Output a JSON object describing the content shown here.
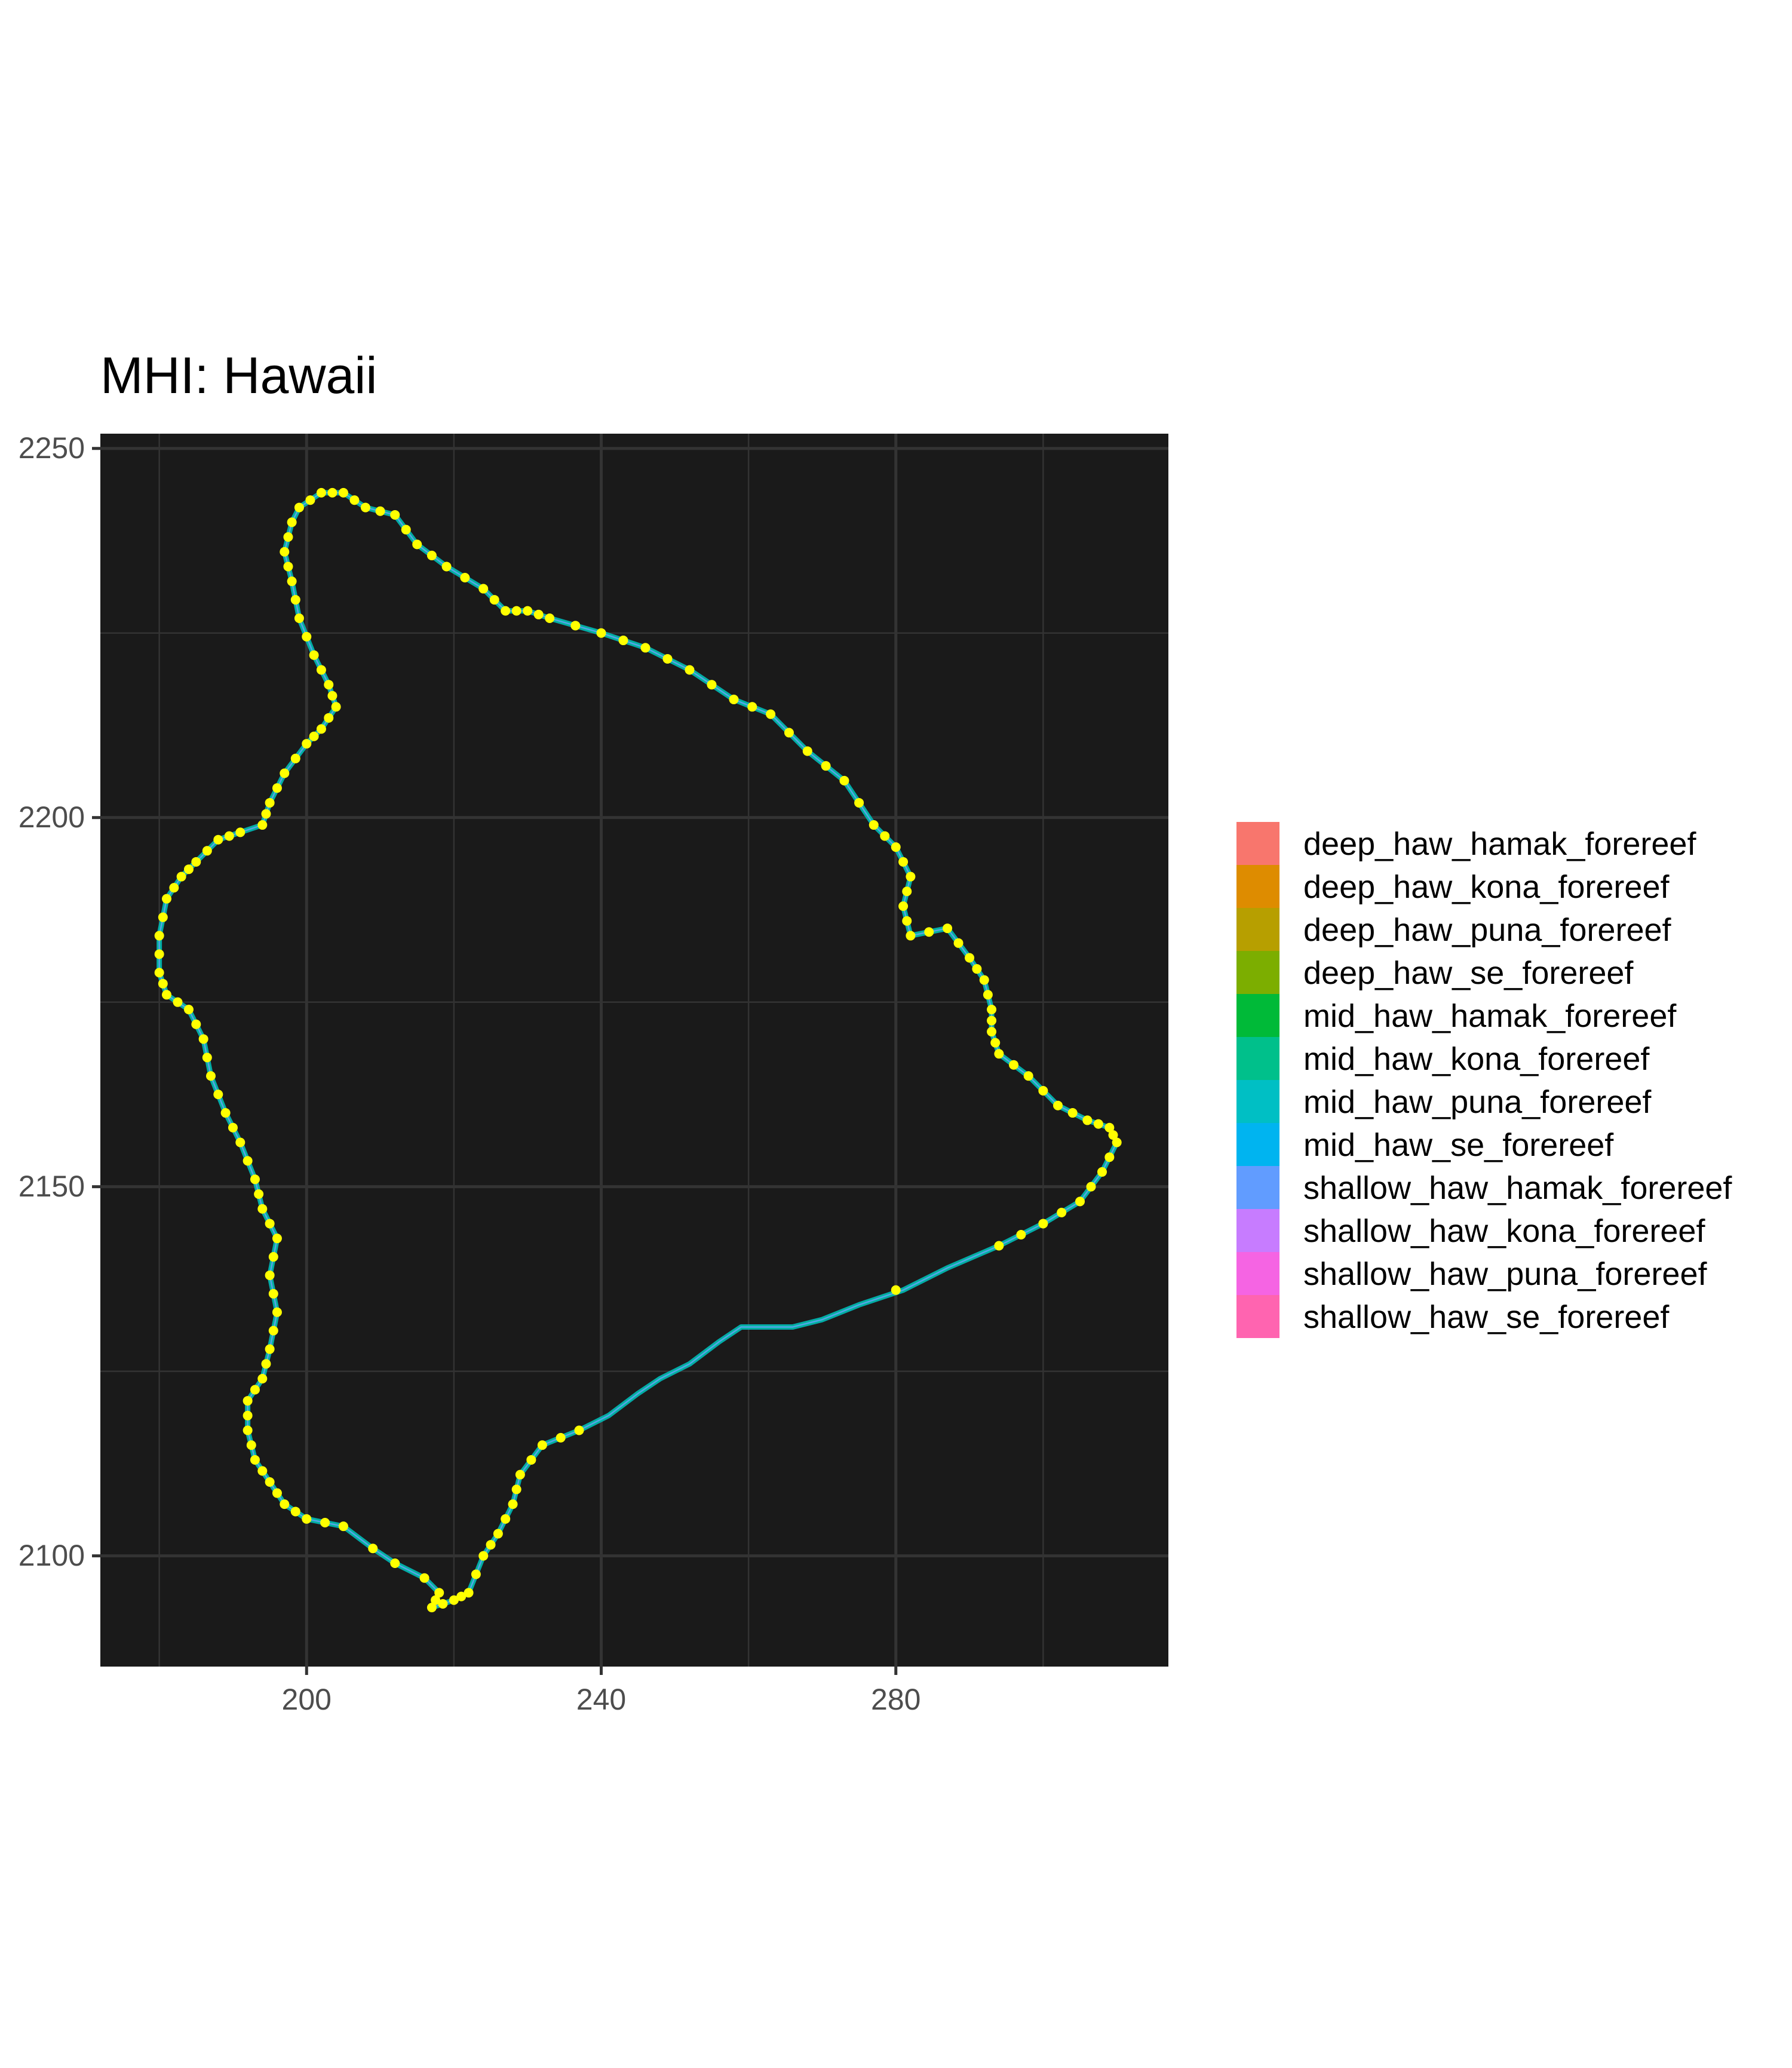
{
  "chart_data": {
    "type": "scatter",
    "title": "MHI: Hawaii",
    "xlabel": "",
    "ylabel": "",
    "xlim": [
      172,
      317
    ],
    "ylim": [
      2085,
      2252
    ],
    "x_ticks": [
      200,
      240,
      280
    ],
    "y_ticks": [
      2100,
      2150,
      2200,
      2250
    ],
    "grid": true,
    "panel_background": "#1a1a1a",
    "grid_color": "#333333",
    "point_color": "#ffff00",
    "legend_position": "right",
    "legend": [
      {
        "label": "deep_haw_hamak_forereef",
        "color": "#F8766D"
      },
      {
        "label": "deep_haw_kona_forereef",
        "color": "#DE8C00"
      },
      {
        "label": "deep_haw_puna_forereef",
        "color": "#B79F00"
      },
      {
        "label": "deep_haw_se_forereef",
        "color": "#7CAE00"
      },
      {
        "label": "mid_haw_hamak_forereef",
        "color": "#00BA38"
      },
      {
        "label": "mid_haw_kona_forereef",
        "color": "#00C08B"
      },
      {
        "label": "mid_haw_puna_forereef",
        "color": "#00BFC4"
      },
      {
        "label": "mid_haw_se_forereef",
        "color": "#00B4F0"
      },
      {
        "label": "shallow_haw_hamak_forereef",
        "color": "#619CFF"
      },
      {
        "label": "shallow_haw_kona_forereef",
        "color": "#C77CFF"
      },
      {
        "label": "shallow_haw_puna_forereef",
        "color": "#F564E3"
      },
      {
        "label": "shallow_haw_se_forereef",
        "color": "#FF64B0"
      }
    ],
    "coastline": [
      [
        199,
        2242
      ],
      [
        202,
        2244
      ],
      [
        205,
        2244
      ],
      [
        208,
        2242
      ],
      [
        212,
        2241
      ],
      [
        215,
        2237
      ],
      [
        219,
        2234
      ],
      [
        224,
        2231
      ],
      [
        227,
        2228
      ],
      [
        230,
        2228
      ],
      [
        233,
        2227
      ],
      [
        240,
        2225
      ],
      [
        246,
        2223
      ],
      [
        252,
        2220
      ],
      [
        258,
        2216
      ],
      [
        263,
        2214
      ],
      [
        268,
        2209
      ],
      [
        273,
        2205
      ],
      [
        277,
        2199
      ],
      [
        280,
        2196
      ],
      [
        282,
        2192
      ],
      [
        281,
        2188
      ],
      [
        282,
        2184
      ],
      [
        287,
        2185
      ],
      [
        290,
        2181
      ],
      [
        292,
        2178
      ],
      [
        293,
        2174
      ],
      [
        293,
        2171
      ],
      [
        294,
        2168
      ],
      [
        298,
        2165
      ],
      [
        302,
        2161
      ],
      [
        306,
        2159
      ],
      [
        309,
        2158
      ],
      [
        310,
        2156
      ],
      [
        308,
        2152
      ],
      [
        305,
        2148
      ],
      [
        300,
        2145
      ],
      [
        294,
        2142
      ],
      [
        287,
        2139
      ],
      [
        281,
        2136
      ],
      [
        275,
        2134
      ],
      [
        270,
        2132
      ],
      [
        266,
        2131
      ],
      [
        262,
        2131
      ],
      [
        259,
        2131
      ],
      [
        256,
        2129
      ],
      [
        252,
        2126
      ],
      [
        248,
        2124
      ],
      [
        245,
        2122
      ],
      [
        241,
        2119
      ],
      [
        237,
        2117
      ],
      [
        232,
        2115
      ],
      [
        229,
        2111
      ],
      [
        228,
        2107
      ],
      [
        226,
        2103
      ],
      [
        224,
        2100
      ],
      [
        222,
        2095
      ],
      [
        220,
        2094
      ],
      [
        217,
        2093
      ],
      [
        218,
        2095
      ],
      [
        216,
        2097
      ],
      [
        212,
        2099
      ],
      [
        209,
        2101
      ],
      [
        205,
        2104
      ],
      [
        200,
        2105
      ],
      [
        197,
        2107
      ],
      [
        195,
        2110
      ],
      [
        193,
        2113
      ],
      [
        192,
        2117
      ],
      [
        192,
        2121
      ],
      [
        194,
        2124
      ],
      [
        195,
        2128
      ],
      [
        196,
        2133
      ],
      [
        195,
        2138
      ],
      [
        196,
        2143
      ],
      [
        194,
        2147
      ],
      [
        193,
        2151
      ],
      [
        191,
        2156
      ],
      [
        189,
        2160
      ],
      [
        187,
        2165
      ],
      [
        186,
        2170
      ],
      [
        184,
        2174
      ],
      [
        181,
        2176
      ],
      [
        180,
        2179
      ],
      [
        180,
        2184
      ],
      [
        181,
        2189
      ],
      [
        183,
        2192
      ],
      [
        185,
        2194
      ],
      [
        188,
        2197
      ],
      [
        191,
        2198
      ],
      [
        194,
        2199
      ],
      [
        195,
        2202
      ],
      [
        197,
        2206
      ],
      [
        200,
        2210
      ],
      [
        202,
        2212
      ],
      [
        204,
        2215
      ],
      [
        203,
        2218
      ],
      [
        201,
        2222
      ],
      [
        199,
        2227
      ],
      [
        198,
        2232
      ],
      [
        197,
        2236
      ],
      [
        198,
        2240
      ],
      [
        199,
        2242
      ]
    ],
    "points": [
      [
        199,
        2242
      ],
      [
        200.5,
        2243
      ],
      [
        202,
        2244
      ],
      [
        203.5,
        2244
      ],
      [
        205,
        2244
      ],
      [
        206.5,
        2243
      ],
      [
        208,
        2242
      ],
      [
        210,
        2241.5
      ],
      [
        212,
        2241
      ],
      [
        213.5,
        2239
      ],
      [
        215,
        2237
      ],
      [
        217,
        2235.5
      ],
      [
        219,
        2234
      ],
      [
        221.5,
        2232.5
      ],
      [
        224,
        2231
      ],
      [
        225.5,
        2229.5
      ],
      [
        227,
        2228
      ],
      [
        228.5,
        2228
      ],
      [
        230,
        2228
      ],
      [
        231.5,
        2227.5
      ],
      [
        233,
        2227
      ],
      [
        236.5,
        2226
      ],
      [
        240,
        2225
      ],
      [
        243,
        2224
      ],
      [
        246,
        2223
      ],
      [
        249,
        2221.5
      ],
      [
        252,
        2220
      ],
      [
        255,
        2218
      ],
      [
        258,
        2216
      ],
      [
        260.5,
        2215
      ],
      [
        263,
        2214
      ],
      [
        265.5,
        2211.5
      ],
      [
        268,
        2209
      ],
      [
        270.5,
        2207
      ],
      [
        273,
        2205
      ],
      [
        275,
        2202
      ],
      [
        277,
        2199
      ],
      [
        278.5,
        2197.5
      ],
      [
        280,
        2196
      ],
      [
        281,
        2194
      ],
      [
        282,
        2192
      ],
      [
        281.5,
        2190
      ],
      [
        281,
        2188
      ],
      [
        281.5,
        2186
      ],
      [
        282,
        2184
      ],
      [
        284.5,
        2184.5
      ],
      [
        287,
        2185
      ],
      [
        288.5,
        2183
      ],
      [
        290,
        2181
      ],
      [
        291,
        2179.5
      ],
      [
        292,
        2178
      ],
      [
        292.5,
        2176
      ],
      [
        293,
        2174
      ],
      [
        293,
        2172.5
      ],
      [
        293,
        2171
      ],
      [
        293.5,
        2169.5
      ],
      [
        294,
        2168
      ],
      [
        296,
        2166.5
      ],
      [
        298,
        2165
      ],
      [
        300,
        2163
      ],
      [
        302,
        2161
      ],
      [
        304,
        2160
      ],
      [
        306,
        2159
      ],
      [
        307.5,
        2158.5
      ],
      [
        309,
        2158
      ],
      [
        309.5,
        2157
      ],
      [
        310,
        2156
      ],
      [
        309,
        2154
      ],
      [
        308,
        2152
      ],
      [
        306.5,
        2150
      ],
      [
        305,
        2148
      ],
      [
        302.5,
        2146.5
      ],
      [
        300,
        2145
      ],
      [
        297,
        2143.5
      ],
      [
        294,
        2142
      ],
      [
        280,
        2136
      ],
      [
        237,
        2117
      ],
      [
        234.5,
        2116
      ],
      [
        232,
        2115
      ],
      [
        230.5,
        2113
      ],
      [
        229,
        2111
      ],
      [
        228.5,
        2109
      ],
      [
        228,
        2107
      ],
      [
        227,
        2105
      ],
      [
        226,
        2103
      ],
      [
        225,
        2101.5
      ],
      [
        224,
        2100
      ],
      [
        223,
        2097.5
      ],
      [
        222,
        2095
      ],
      [
        221,
        2094.5
      ],
      [
        220,
        2094
      ],
      [
        218.5,
        2093.5
      ],
      [
        217,
        2093
      ],
      [
        217.5,
        2094
      ],
      [
        218,
        2095
      ],
      [
        216,
        2097
      ],
      [
        212,
        2099
      ],
      [
        209,
        2101
      ],
      [
        205,
        2104
      ],
      [
        202.5,
        2104.5
      ],
      [
        200,
        2105
      ],
      [
        198.5,
        2106
      ],
      [
        197,
        2107
      ],
      [
        196,
        2108.5
      ],
      [
        195,
        2110
      ],
      [
        194,
        2111.5
      ],
      [
        193,
        2113
      ],
      [
        192.5,
        2115
      ],
      [
        192,
        2117
      ],
      [
        192,
        2119
      ],
      [
        192,
        2121
      ],
      [
        193,
        2122.5
      ],
      [
        194,
        2124
      ],
      [
        194.5,
        2126
      ],
      [
        195,
        2128
      ],
      [
        195.5,
        2130.5
      ],
      [
        196,
        2133
      ],
      [
        195.5,
        2135.5
      ],
      [
        195,
        2138
      ],
      [
        195.5,
        2140.5
      ],
      [
        196,
        2143
      ],
      [
        195,
        2145
      ],
      [
        194,
        2147
      ],
      [
        193.5,
        2149
      ],
      [
        193,
        2151
      ],
      [
        192,
        2153.5
      ],
      [
        191,
        2156
      ],
      [
        190,
        2158
      ],
      [
        189,
        2160
      ],
      [
        188,
        2162.5
      ],
      [
        187,
        2165
      ],
      [
        186.5,
        2167.5
      ],
      [
        186,
        2170
      ],
      [
        185,
        2172
      ],
      [
        184,
        2174
      ],
      [
        182.5,
        2175
      ],
      [
        181,
        2176
      ],
      [
        180.5,
        2177.5
      ],
      [
        180,
        2179
      ],
      [
        180,
        2181.5
      ],
      [
        180,
        2184
      ],
      [
        180.5,
        2186.5
      ],
      [
        181,
        2189
      ],
      [
        182,
        2190.5
      ],
      [
        183,
        2192
      ],
      [
        184,
        2193
      ],
      [
        185,
        2194
      ],
      [
        186.5,
        2195.5
      ],
      [
        188,
        2197
      ],
      [
        189.5,
        2197.5
      ],
      [
        191,
        2198
      ],
      [
        194,
        2199
      ],
      [
        194.5,
        2200.5
      ],
      [
        195,
        2202
      ],
      [
        196,
        2204
      ],
      [
        197,
        2206
      ],
      [
        198.5,
        2208
      ],
      [
        200,
        2210
      ],
      [
        201,
        2211
      ],
      [
        202,
        2212
      ],
      [
        203,
        2213.5
      ],
      [
        204,
        2215
      ],
      [
        203.5,
        2216.5
      ],
      [
        203,
        2218
      ],
      [
        202,
        2220
      ],
      [
        201,
        2222
      ],
      [
        200,
        2224.5
      ],
      [
        199,
        2227
      ],
      [
        198.5,
        2229.5
      ],
      [
        198,
        2232
      ],
      [
        197.5,
        2234
      ],
      [
        197,
        2236
      ],
      [
        197.5,
        2238
      ],
      [
        198,
        2240
      ]
    ]
  }
}
